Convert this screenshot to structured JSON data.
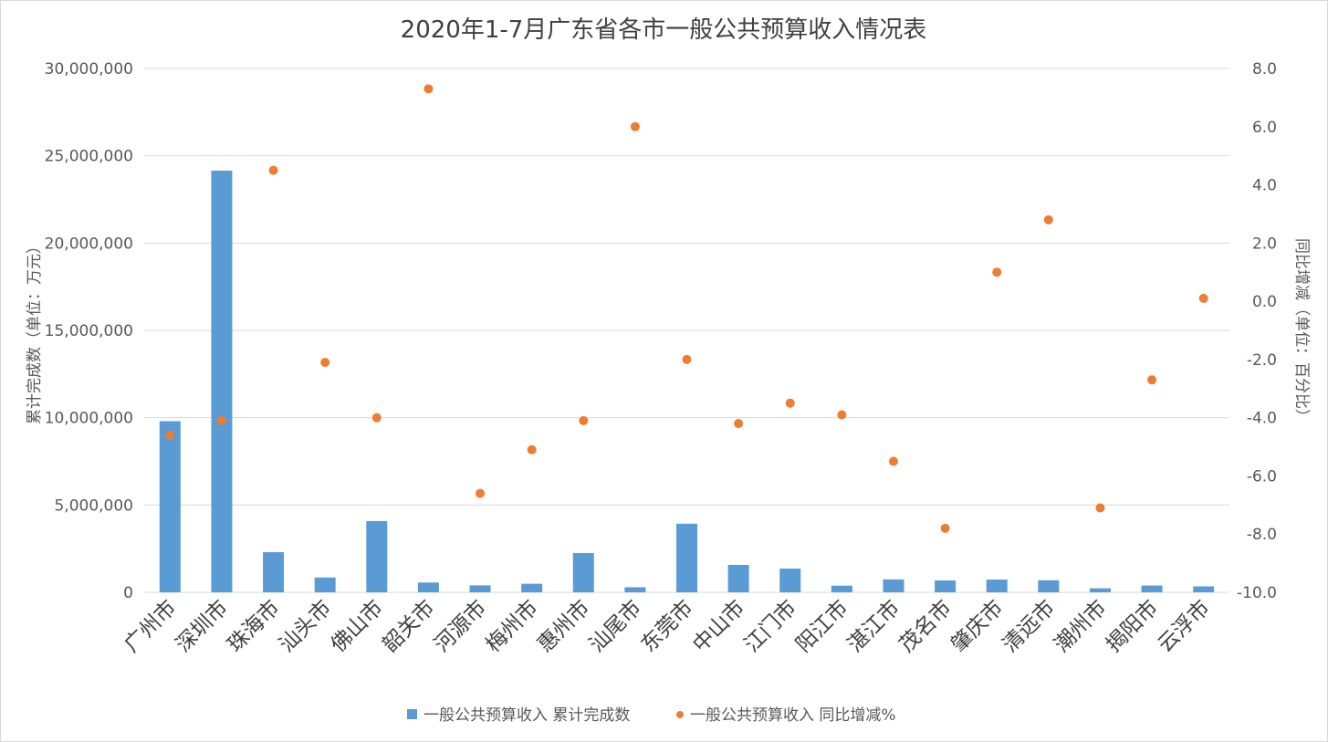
{
  "chart_data": {
    "type": "bar",
    "title": "2020年1-7月广东省各市一般公共预算收入情况表",
    "categories": [
      "广州市",
      "深圳市",
      "珠海市",
      "汕头市",
      "佛山市",
      "韶关市",
      "河源市",
      "梅州市",
      "惠州市",
      "汕尾市",
      "东莞市",
      "中山市",
      "江门市",
      "阳江市",
      "湛江市",
      "茂名市",
      "肇庆市",
      "清远市",
      "潮州市",
      "揭阳市",
      "云浮市"
    ],
    "series": [
      {
        "name": "一般公共预算收入 累计完成数",
        "type": "bar",
        "axis": "left",
        "color": "#5B9BD5",
        "values": [
          9800000,
          24150000,
          2300000,
          850000,
          4080000,
          560000,
          400000,
          490000,
          2250000,
          290000,
          3930000,
          1570000,
          1360000,
          380000,
          740000,
          680000,
          730000,
          690000,
          230000,
          390000,
          340000
        ]
      },
      {
        "name": "一般公共预算收入 同比增减%",
        "type": "scatter",
        "axis": "right",
        "color": "#ED7D31",
        "values": [
          -4.6,
          -4.1,
          4.5,
          -2.1,
          -4.0,
          7.3,
          -6.6,
          -5.1,
          -4.1,
          6.0,
          -2.0,
          -4.2,
          -3.5,
          -3.9,
          -5.5,
          -7.8,
          1.0,
          2.8,
          -7.1,
          -2.7,
          0.1
        ]
      }
    ],
    "ylabel": "累计完成数（单位：万元）",
    "y2label": "同比增减（单位：百分比）",
    "ylim": [
      0,
      30000000
    ],
    "y2lim": [
      -10,
      8
    ],
    "yticks": [
      "0",
      "5,000,000",
      "10,000,000",
      "15,000,000",
      "20,000,000",
      "25,000,000",
      "30,000,000"
    ],
    "y2ticks": [
      "-10.0",
      "-8.0",
      "-6.0",
      "-4.0",
      "-2.0",
      "0.0",
      "2.0",
      "4.0",
      "6.0",
      "8.0"
    ],
    "grid": true,
    "legend_position": "bottom"
  }
}
